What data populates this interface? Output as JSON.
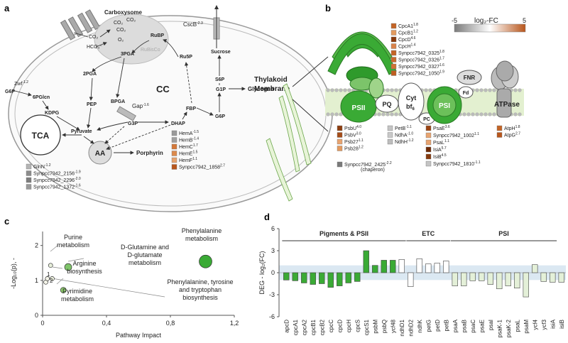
{
  "panels": {
    "a": "a",
    "b": "b",
    "c": "c",
    "d": "d"
  },
  "panel_a": {
    "carboxysome": "Carboxysome",
    "co2": "CO₂",
    "o2": "O₂",
    "hco3": "HCO₃⁻",
    "rubisco": "RuBisCo",
    "rubp": "RuBP",
    "pga3": "3PGA",
    "pga2": "2PGA",
    "bpga": "BPGA",
    "ru5p": "Ru5P",
    "s6p": "S6P",
    "sucrose": "Sucrose",
    "cscb": "CscB",
    "cscb_fc": "-2.3",
    "g1p": "G1P",
    "glycogen": "Glycogen",
    "cc": "CC",
    "g6p_left": "G6P",
    "zwf": "Zwf",
    "zwf_fc": "-1.2",
    "pglcn": "6PGlcn",
    "kdpg": "KDPG",
    "pep": "PEP",
    "gap": "Gap",
    "gap_fc": "-1.6",
    "fbp": "FBP",
    "g6p": "G6P",
    "dhap": "DHAP",
    "g3p": "G3P",
    "pyruvate": "Pyruvate",
    "tca": "TCA",
    "aa": "AA",
    "porphyrin": "Porphyrin",
    "thylakoid": "Thylakoid",
    "membrane": "Membrane",
    "hem_genes": [
      {
        "name": "HemA",
        "fc": "-1.5",
        "color": "#9a9a9a"
      },
      {
        "name": "HemB",
        "fc": "-1.4",
        "color": "#a0a0a0"
      },
      {
        "name": "HemC",
        "fc": "1.7",
        "color": "#d4793a"
      },
      {
        "name": "HemE",
        "fc": "1.5",
        "color": "#dc8a4c"
      },
      {
        "name": "HemF",
        "fc": "1.1",
        "color": "#e6a36e"
      },
      {
        "name": "Synpcc7942_1858",
        "fc": "2.7",
        "color": "#b8561c"
      }
    ],
    "gln_genes": [
      {
        "name": "GlnN",
        "fc": "-1.2",
        "color": "#b4b4b4"
      },
      {
        "name": "Synpcc7942_2156",
        "fc": "-1.9",
        "color": "#8c8c8c"
      },
      {
        "name": "Synpcc7942_2296",
        "fc": "-2.0",
        "color": "#7d7d7d"
      },
      {
        "name": "Synpcc7942_1372",
        "fc": "-1.6",
        "color": "#9a9a9a"
      }
    ]
  },
  "panel_b": {
    "legend_title": "log₂-FC",
    "legend_min": "-5",
    "legend_max": "5",
    "pbs_genes": [
      {
        "name": "CpcA1",
        "fc": "1.8",
        "color": "#c46426"
      },
      {
        "name": "CpcB1",
        "fc": "1.2",
        "color": "#e39a5e"
      },
      {
        "name": "CpcD",
        "fc": "4.6",
        "color": "#8a3a0c"
      },
      {
        "name": "CpcH",
        "fc": "1.4",
        "color": "#d9824a"
      },
      {
        "name": "Synpcc7942_0325",
        "fc": "1.8",
        "color": "#c46426"
      },
      {
        "name": "Synpcc7942_0326",
        "fc": "1.7",
        "color": "#c96a2c"
      },
      {
        "name": "Synpcc7942_0327",
        "fc": "1.6",
        "color": "#cf7234"
      },
      {
        "name": "Synpcc7942_1050",
        "fc": "1.9",
        "color": "#be5e20"
      }
    ],
    "fnr": "FNR",
    "fd": "Fd",
    "atpase": "ATPase",
    "psii": "PSII",
    "pq": "PQ",
    "cyt": "Cyt",
    "bf6": "bf",
    "bf6_sub": "6",
    "pc": "PC",
    "psi": "PSI",
    "psb_genes": [
      {
        "name": "PsbU",
        "fc": "4.0",
        "color": "#8e3e10"
      },
      {
        "name": "PsbV",
        "fc": "3.0",
        "color": "#a54c18"
      },
      {
        "name": "Psb27",
        "fc": "1.1",
        "color": "#e8a470"
      },
      {
        "name": "Psb28",
        "fc": "1.2",
        "color": "#e39a5e"
      }
    ],
    "chaperone_gene": {
      "name": "Synpcc7942_2425",
      "fc": "-2.2",
      "color": "#7a7a7a"
    },
    "chaperone_note": "(chaperon)",
    "pet_genes": [
      {
        "name": "PetB",
        "fc": "-1.1",
        "color": "#c4c4c4"
      },
      {
        "name": "NdhA",
        "fc": "-1.0",
        "color": "#c8c8c8"
      },
      {
        "name": "NdhH",
        "fc": "-1.2",
        "color": "#bdbdbd"
      }
    ],
    "psa_genes": [
      {
        "name": "PsaE",
        "fc": "3.6",
        "color": "#9a4414"
      },
      {
        "name": "Synpcc7942_1002",
        "fc": "1.1",
        "color": "#e8a470"
      },
      {
        "name": "PsaL",
        "fc": "1.1",
        "color": "#e8a470"
      },
      {
        "name": "IsiA",
        "fc": "5.7",
        "color": "#6e2a06"
      },
      {
        "name": "IsiB",
        "fc": "4.5",
        "color": "#853a0e"
      },
      {
        "name": "Synpcc7942_1810",
        "fc": "-1.1",
        "color": "#c4c4c4"
      }
    ],
    "atp_genes": [
      {
        "name": "AtpH",
        "fc": "1.8",
        "color": "#c46426"
      },
      {
        "name": "AtpG",
        "fc": "2.7",
        "color": "#b8561c"
      }
    ]
  },
  "chart_data": [
    {
      "type": "scatter",
      "panel": "c",
      "xlabel": "Pathway Impact",
      "ylabel": "-Log₁₀(p), -",
      "xlim": [
        0,
        1.2
      ],
      "ylim": [
        0,
        2.4
      ],
      "x_ticks": [
        "0",
        "0,4",
        "0,8",
        "1,2"
      ],
      "y_ticks": [
        "0",
        "1",
        "2"
      ],
      "points": [
        {
          "x": 0.02,
          "y": 0.95,
          "size": 3,
          "color": "#f4f4e8"
        },
        {
          "x": 0.03,
          "y": 1.05,
          "size": 3,
          "color": "#f4f4e8"
        },
        {
          "x": 0.05,
          "y": 1.43,
          "size": 3,
          "color": "#e8f0dc"
        },
        {
          "x": 0.06,
          "y": 1.05,
          "size": 3,
          "color": "#eef2e0"
        },
        {
          "x": 0.16,
          "y": 1.38,
          "size": 5,
          "color": "#7fc46a"
        },
        {
          "x": 0.13,
          "y": 0.72,
          "size": 4,
          "color": "#8fcc6e"
        },
        {
          "x": 1.02,
          "y": 1.54,
          "size": 9,
          "color": "#3aaa35"
        }
      ],
      "annotations": [
        {
          "text": [
            "Purine",
            "metabolism"
          ]
        },
        {
          "text": [
            "D-Glutamine and",
            "D-glutamate",
            "metabolism"
          ]
        },
        {
          "text": [
            "Arginine",
            "biosynthesis"
          ]
        },
        {
          "text": [
            "Pyrimidine",
            "metabolism"
          ]
        },
        {
          "text": [
            "Phenylalanine",
            "metabolism"
          ]
        },
        {
          "text": [
            "Phenylalanine, tyrosine",
            "and tryptophan",
            "biosynthesis"
          ]
        }
      ],
      "cluster_labels": [
        "1",
        "2"
      ]
    },
    {
      "type": "bar",
      "panel": "d",
      "ylabel": "DEG - log₂(FC)",
      "ylim": [
        -6,
        6
      ],
      "y_ticks": [
        -6,
        -3,
        0,
        3,
        6
      ],
      "threshold_band": [
        -1,
        1
      ],
      "groups": [
        {
          "label": "Pigments & PSII",
          "from": 0,
          "to": 13
        },
        {
          "label": "ETC",
          "from": 14,
          "to": 18
        },
        {
          "label": "PSI",
          "from": 19,
          "to": 30
        }
      ],
      "categories": [
        "apcD",
        "cpcA1",
        "cpcA2",
        "cpcB1",
        "cpcB2",
        "cpcC",
        "cpcD",
        "cpcH",
        "cpcS",
        "cpcS1",
        "psbM",
        "psbQ",
        "ycf48",
        "ndhD1",
        "ndhD2",
        "ndhK",
        "petG",
        "petD",
        "petB",
        "psaA",
        "psaB",
        "psaC",
        "psaE",
        "psaI",
        "psaK-1",
        "psaK-2",
        "psaL",
        "psaM",
        "ycf4",
        "ycf3",
        "isiA",
        "isiB"
      ],
      "values": [
        -1.0,
        -1.1,
        -1.4,
        -1.6,
        -1.5,
        -2.0,
        -1.8,
        -1.4,
        -1.2,
        3.0,
        1.0,
        1.7,
        1.7,
        1.8,
        -1.9,
        1.9,
        1.2,
        1.3,
        1.6,
        -1.8,
        -1.8,
        -1.1,
        -1.1,
        -1.6,
        -2.2,
        -1.8,
        -2.1,
        -3.3,
        1.1,
        -1.2,
        -1.3,
        -1.3
      ],
      "colors": [
        "#3aaa35",
        "#3aaa35",
        "#3aaa35",
        "#3aaa35",
        "#3aaa35",
        "#3aaa35",
        "#3aaa35",
        "#3aaa35",
        "#3aaa35",
        "#3aaa35",
        "#3aaa35",
        "#3aaa35",
        "#3aaa35",
        "#ffffff",
        "#ffffff",
        "#ffffff",
        "#ffffff",
        "#ffffff",
        "#ffffff",
        "#e4f0d8",
        "#e4f0d8",
        "#e4f0d8",
        "#e4f0d8",
        "#e4f0d8",
        "#e4f0d8",
        "#e4f0d8",
        "#e4f0d8",
        "#e4f0d8",
        "#e4f0d8",
        "#e4f0d8",
        "#e4f0d8",
        "#e4f0d8"
      ]
    }
  ]
}
